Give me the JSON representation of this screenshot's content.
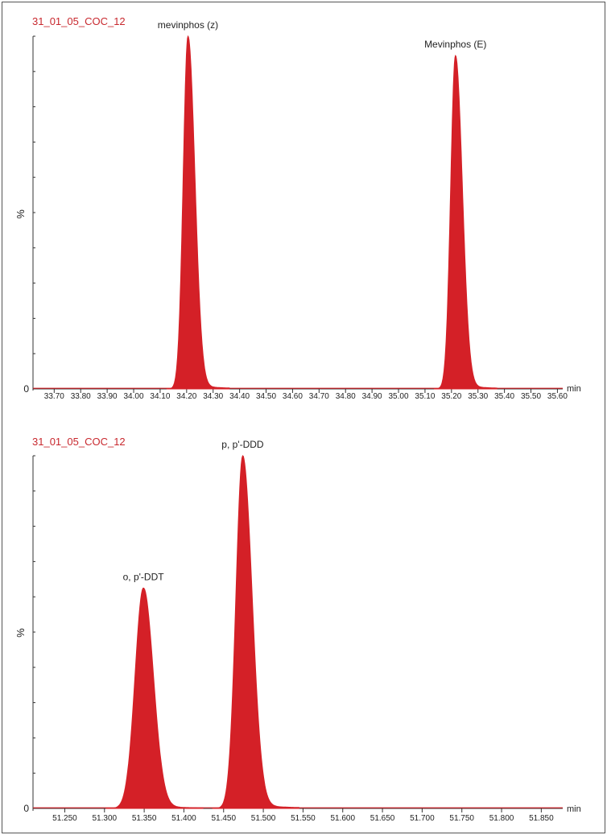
{
  "chart_data": [
    {
      "type": "area",
      "title": "31_01_05_COC_12",
      "ylabel": "%",
      "xlabel": "min",
      "y_tick_labels": [
        "0"
      ],
      "xlim": [
        33.62,
        35.62
      ],
      "ylim": [
        0,
        100
      ],
      "x_ticks": [
        33.7,
        33.8,
        33.9,
        34.0,
        34.1,
        34.2,
        34.3,
        34.4,
        34.5,
        34.6,
        34.7,
        34.8,
        34.9,
        35.0,
        35.1,
        35.2,
        35.3,
        35.4,
        35.5,
        35.6
      ],
      "x_tick_labels": [
        "33.70",
        "33.80",
        "33.90",
        "34.00",
        "34.10",
        "34.20",
        "34.30",
        "34.40",
        "34.50",
        "34.60",
        "34.70",
        "34.80",
        "34.90",
        "35.00",
        "35.10",
        "35.20",
        "35.30",
        "35.40",
        "35.50",
        "35.60"
      ],
      "color": "#d42027",
      "grid": false,
      "peaks": [
        {
          "label": "mevinphos (z)",
          "rt": 34.205,
          "height": 100,
          "sigma_left": 0.018,
          "sigma_right": 0.026
        },
        {
          "label": "Mevinphos (E)",
          "rt": 35.215,
          "height": 94.5,
          "sigma_left": 0.018,
          "sigma_right": 0.026
        }
      ]
    },
    {
      "type": "area",
      "title": "31_01_05_COC_12",
      "ylabel": "%",
      "xlabel": "min",
      "y_tick_labels": [
        "0"
      ],
      "xlim": [
        51.21,
        51.877
      ],
      "ylim": [
        0,
        100
      ],
      "x_ticks": [
        51.25,
        51.3,
        51.35,
        51.4,
        51.45,
        51.5,
        51.55,
        51.6,
        51.65,
        51.7,
        51.75,
        51.8,
        51.85
      ],
      "x_tick_labels": [
        "51.250",
        "51.300",
        "51.350",
        "51.400",
        "51.450",
        "51.500",
        "51.550",
        "51.600",
        "51.650",
        "51.700",
        "51.750",
        "51.800",
        "51.850"
      ],
      "color": "#d42027",
      "grid": false,
      "peaks": [
        {
          "label": "o, p'-DDT",
          "rt": 51.349,
          "height": 62.5,
          "sigma_left": 0.0105,
          "sigma_right": 0.0125
        },
        {
          "label": "p, p'-DDD",
          "rt": 51.474,
          "height": 100,
          "sigma_left": 0.0085,
          "sigma_right": 0.0118
        }
      ]
    }
  ]
}
